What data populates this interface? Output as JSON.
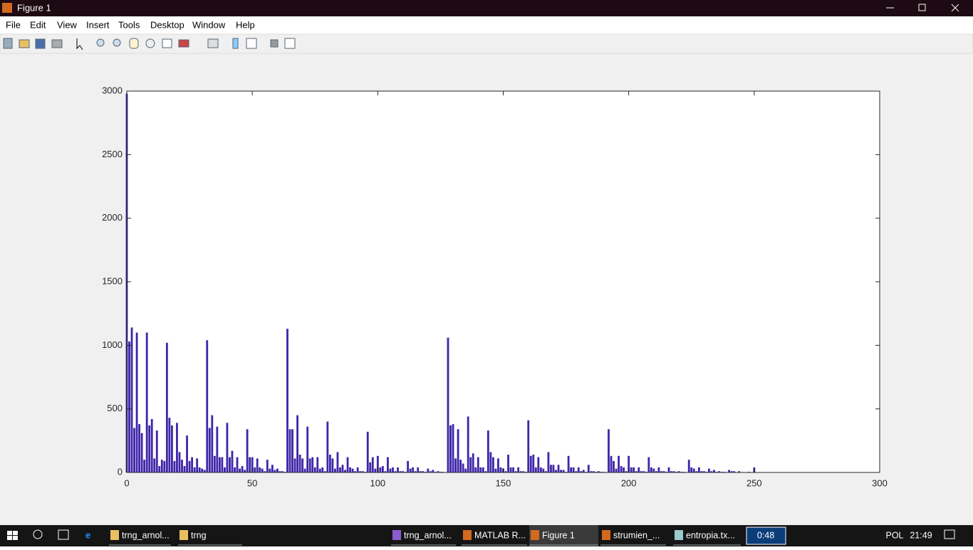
{
  "window": {
    "title": "Figure 1",
    "menu": [
      "File",
      "Edit",
      "View",
      "Insert",
      "Tools",
      "Desktop",
      "Window",
      "Help"
    ]
  },
  "taskbar": {
    "items": [
      "trng_arnol...",
      "trng",
      "trng_arnol...",
      "MATLAB R...",
      "Figure 1",
      "strumien_...",
      "entropia.tx..."
    ],
    "timer": "0:48",
    "language": "POL",
    "clock": "21:49"
  },
  "chart_data": {
    "type": "bar",
    "color": "#3e26a8",
    "x": [
      0,
      1,
      2,
      3,
      4,
      5,
      6,
      7,
      8,
      9,
      10,
      11,
      12,
      13,
      14,
      15,
      16,
      17,
      18,
      19,
      20,
      21,
      22,
      23,
      24,
      25,
      26,
      27,
      28,
      29,
      30,
      31,
      32,
      33,
      34,
      35,
      36,
      37,
      38,
      39,
      40,
      41,
      42,
      43,
      44,
      45,
      46,
      47,
      48,
      49,
      50,
      51,
      52,
      53,
      54,
      55,
      56,
      57,
      58,
      59,
      60,
      61,
      62,
      63,
      64,
      65,
      66,
      67,
      68,
      69,
      70,
      71,
      72,
      73,
      74,
      75,
      76,
      77,
      78,
      79,
      80,
      81,
      82,
      83,
      84,
      85,
      86,
      87,
      88,
      89,
      90,
      91,
      92,
      93,
      94,
      95,
      96,
      97,
      98,
      99,
      100,
      101,
      102,
      103,
      104,
      105,
      106,
      107,
      108,
      109,
      110,
      111,
      112,
      113,
      114,
      115,
      116,
      117,
      118,
      119,
      120,
      121,
      122,
      123,
      124,
      125,
      126,
      127,
      128,
      129,
      130,
      131,
      132,
      133,
      134,
      135,
      136,
      137,
      138,
      139,
      140,
      141,
      142,
      143,
      144,
      145,
      146,
      147,
      148,
      149,
      150,
      151,
      152,
      153,
      154,
      155,
      156,
      157,
      158,
      159,
      160,
      161,
      162,
      163,
      164,
      165,
      166,
      167,
      168,
      169,
      170,
      171,
      172,
      173,
      174,
      175,
      176,
      177,
      178,
      179,
      180,
      181,
      182,
      183,
      184,
      185,
      186,
      187,
      188,
      189,
      190,
      191,
      192,
      193,
      194,
      195,
      196,
      197,
      198,
      199,
      200,
      201,
      202,
      203,
      204,
      205,
      206,
      207,
      208,
      209,
      210,
      211,
      212,
      213,
      214,
      215,
      216,
      217,
      218,
      219,
      220,
      221,
      222,
      223,
      224,
      225,
      226,
      227,
      228,
      229,
      230,
      231,
      232,
      233,
      234,
      235,
      236,
      237,
      238,
      239,
      240,
      241,
      242,
      243,
      244,
      245,
      246,
      247,
      248,
      249,
      250,
      251,
      252,
      253,
      254,
      255
    ],
    "values": [
      2980,
      1030,
      1140,
      350,
      1100,
      380,
      310,
      100,
      1100,
      370,
      420,
      110,
      330,
      50,
      100,
      90,
      1020,
      430,
      370,
      90,
      390,
      160,
      100,
      50,
      290,
      90,
      120,
      40,
      110,
      40,
      30,
      20,
      1040,
      350,
      450,
      130,
      360,
      120,
      120,
      40,
      390,
      120,
      170,
      40,
      120,
      30,
      50,
      20,
      340,
      120,
      120,
      40,
      110,
      40,
      30,
      10,
      100,
      30,
      60,
      20,
      30,
      10,
      10,
      5,
      1130,
      340,
      340,
      110,
      450,
      140,
      110,
      30,
      360,
      110,
      120,
      40,
      120,
      30,
      40,
      10,
      400,
      140,
      110,
      30,
      160,
      40,
      60,
      20,
      120,
      40,
      30,
      10,
      40,
      10,
      10,
      5,
      320,
      80,
      120,
      30,
      130,
      40,
      50,
      10,
      120,
      30,
      40,
      10,
      40,
      10,
      10,
      5,
      90,
      30,
      40,
      10,
      40,
      10,
      10,
      5,
      30,
      10,
      20,
      5,
      10,
      5,
      5,
      2,
      1060,
      370,
      380,
      110,
      340,
      100,
      70,
      30,
      440,
      120,
      150,
      40,
      120,
      40,
      40,
      10,
      330,
      160,
      120,
      30,
      110,
      40,
      30,
      10,
      140,
      40,
      40,
      10,
      40,
      10,
      10,
      5,
      410,
      130,
      140,
      40,
      120,
      40,
      30,
      10,
      160,
      60,
      60,
      20,
      60,
      20,
      20,
      5,
      130,
      40,
      40,
      10,
      40,
      10,
      20,
      5,
      60,
      10,
      10,
      5,
      10,
      5,
      5,
      2,
      340,
      130,
      90,
      30,
      130,
      50,
      40,
      10,
      130,
      40,
      40,
      10,
      40,
      10,
      10,
      5,
      120,
      40,
      30,
      10,
      40,
      10,
      10,
      5,
      40,
      10,
      10,
      5,
      10,
      5,
      5,
      2,
      100,
      40,
      30,
      10,
      40,
      10,
      10,
      5,
      30,
      10,
      20,
      5,
      10,
      5,
      5,
      2,
      20,
      10,
      10,
      2,
      10,
      2,
      2,
      1,
      5,
      2,
      40,
      2,
      2,
      1,
      1,
      0
    ],
    "xlim": [
      0,
      300
    ],
    "xticks": [
      0,
      50,
      100,
      150,
      200,
      250,
      300
    ],
    "ylim": [
      0,
      3000
    ],
    "yticks": [
      0,
      500,
      1000,
      1500,
      2000,
      2500,
      3000
    ],
    "grid": false
  }
}
